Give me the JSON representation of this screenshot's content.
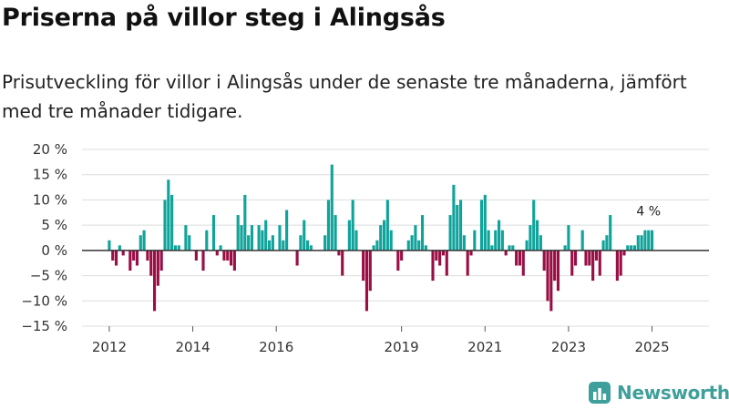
{
  "title": "Priserna på villor steg i Alingsås",
  "subtitle": "Prisutveckling för villor i Alingsås under de senaste tre månaderna, jämfört med tre månader tidigare.",
  "brand": "Newsworthy",
  "colors": {
    "positive": "#0fa39b",
    "negative": "#990f45",
    "grid": "#dddddd",
    "zero": "#333333",
    "brand": "#3f9f9a"
  },
  "chart_data": {
    "type": "bar",
    "x_start": "2012-01",
    "x_end": "2025-09",
    "ylim": [
      -15,
      20
    ],
    "y_ticks": [
      20,
      15,
      10,
      5,
      0,
      -5,
      -10,
      -15
    ],
    "y_tick_labels": [
      "20 %",
      "15 %",
      "10 %",
      "5 %",
      "0 %",
      "−5 %",
      "−10 %",
      "−15 %"
    ],
    "x_ticks": [
      2012,
      2014,
      2016,
      2019,
      2021,
      2023,
      2025
    ],
    "last_label": "4 %",
    "values": [
      2,
      -2,
      -3,
      1,
      -1,
      0,
      -4,
      -2,
      -3,
      3,
      4,
      -2,
      -5,
      -12,
      -7,
      -4,
      10,
      14,
      11,
      1,
      1,
      0,
      5,
      3,
      0,
      -2,
      0,
      -4,
      4,
      0,
      7,
      -1,
      1,
      -2,
      -2,
      -3,
      -4,
      7,
      5,
      11,
      3,
      5,
      0,
      5,
      4,
      6,
      2,
      3,
      0,
      5,
      2,
      8,
      0,
      0,
      -3,
      3,
      6,
      2,
      1,
      0,
      0,
      0,
      3,
      10,
      17,
      7,
      -1,
      -5,
      0,
      6,
      10,
      4,
      0,
      -6,
      -12,
      -8,
      1,
      2,
      5,
      6,
      10,
      4,
      0,
      -4,
      -2,
      0,
      2,
      3,
      5,
      2,
      7,
      1,
      0,
      -6,
      -2,
      -3,
      -1,
      -5,
      7,
      13,
      9,
      10,
      3,
      -5,
      -1,
      4,
      0,
      10,
      11,
      4,
      1,
      4,
      6,
      4,
      -1,
      1,
      1,
      -3,
      -3,
      -5,
      2,
      5,
      10,
      6,
      3,
      -4,
      -10,
      -12,
      -6,
      -8,
      0,
      1,
      5,
      -5,
      -3,
      0,
      4,
      -3,
      -3,
      -6,
      -2,
      -5,
      2,
      3,
      7,
      0,
      -6,
      -5,
      -1,
      1,
      1,
      1,
      3,
      3,
      4,
      4,
      4
    ]
  }
}
